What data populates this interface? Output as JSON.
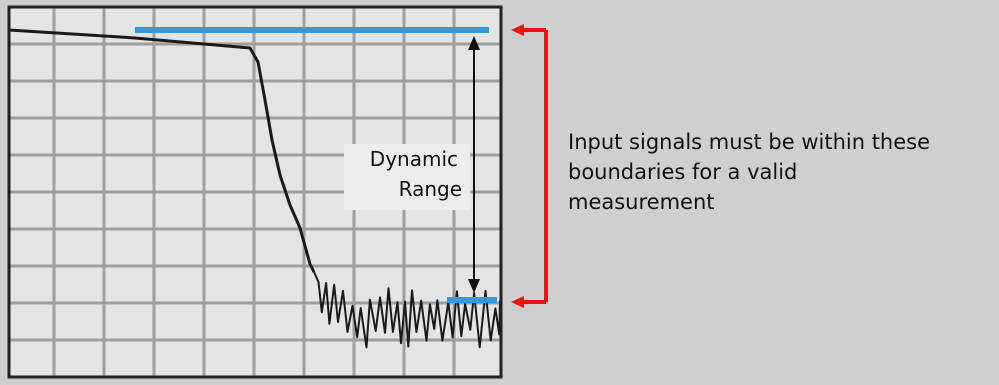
{
  "diagram": {
    "dynamic_range_label": {
      "line1": "Dynamic",
      "line2": "Range"
    },
    "annotation": {
      "line1": "Input signals must be within these",
      "line2": "boundaries for  a valid",
      "line3": "measurement"
    },
    "colors": {
      "background": "#cfcfcf",
      "plot_background": "#e4e4e4",
      "grid": "#9e9e9e",
      "trace": "#1a1a1a",
      "boundary_marker": "#3399dd",
      "bracket": "#ee1111"
    }
  }
}
